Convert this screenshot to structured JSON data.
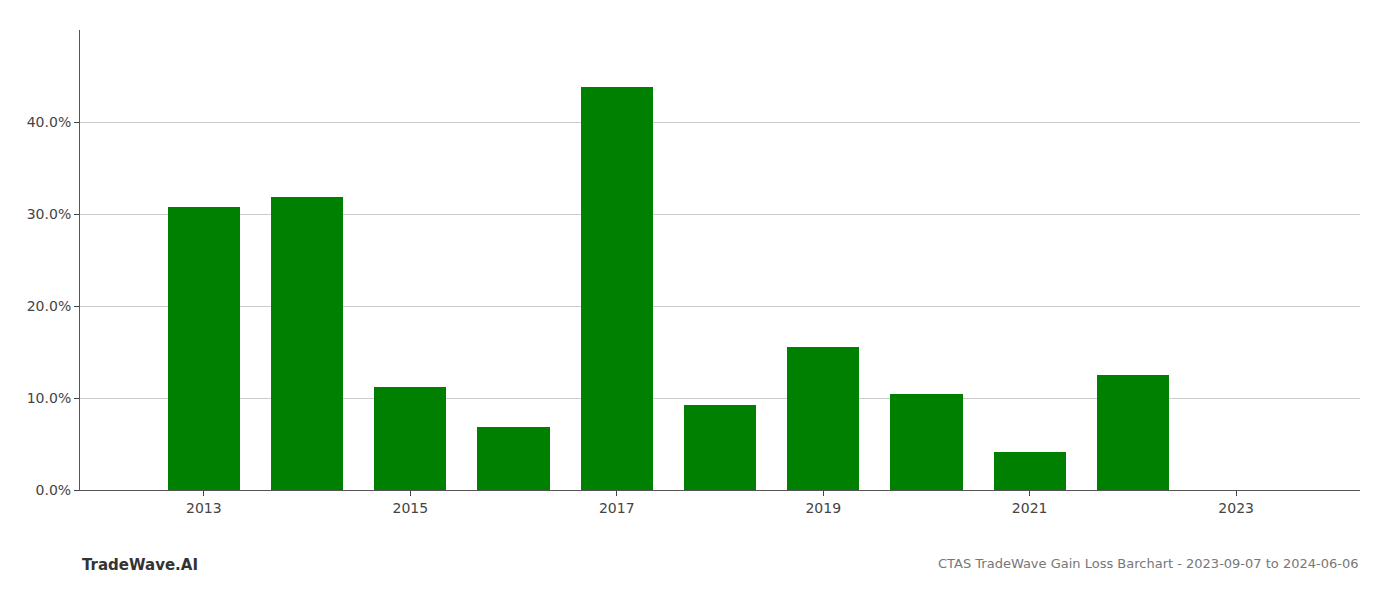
{
  "chart_data": {
    "type": "bar",
    "title": "CTAS TradeWave Gain Loss Barchart - 2023-09-07 to 2024-06-06",
    "annotations": [
      "TradeWave.AI"
    ],
    "x": [
      2013,
      2014,
      2015,
      2016,
      2017,
      2018,
      2019,
      2020,
      2021,
      2022,
      2023
    ],
    "values": [
      0.308,
      0.318,
      0.112,
      0.068,
      0.438,
      0.092,
      0.155,
      0.104,
      0.041,
      0.125,
      0.0
    ],
    "color": "#008000",
    "xlim": [
      2011.8,
      2024.2
    ],
    "xticks": [
      2013,
      2015,
      2017,
      2019,
      2021,
      2023
    ],
    "ylim": [
      0,
      0.5
    ],
    "yticks": [
      {
        "value": 0.0,
        "label": "0.0%"
      },
      {
        "value": 0.1,
        "label": "10.0%"
      },
      {
        "value": 0.2,
        "label": "20.0%"
      },
      {
        "value": 0.3,
        "label": "30.0%"
      },
      {
        "value": 0.4,
        "label": "40.0%"
      }
    ],
    "grid": true
  }
}
